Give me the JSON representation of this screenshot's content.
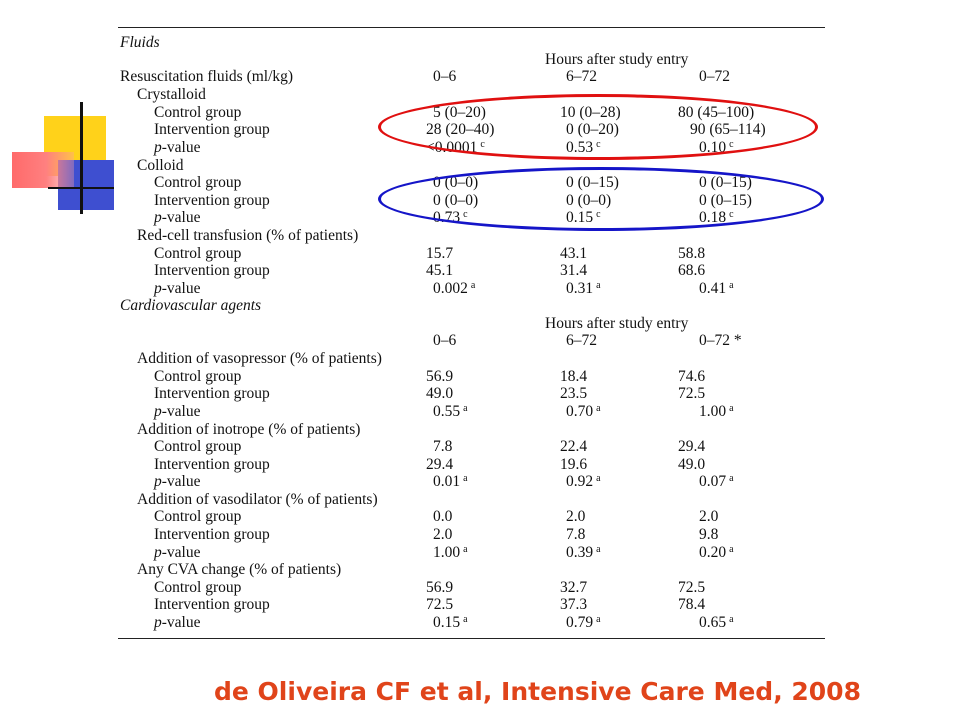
{
  "fluids_section": "Fluids",
  "cardio_section": "Cardiovascular agents",
  "fluids_header": {
    "title": "Hours after study entry",
    "col1": "0–6",
    "col2": "6–72",
    "col3": "0–72"
  },
  "cardio_header": {
    "title": "Hours after study entry",
    "col1": "0–6",
    "col2": "6–72",
    "col3": "0–72 *"
  },
  "rows": {
    "resus": {
      "label": "Resuscitation fluids (ml/kg)"
    },
    "crystalloid": {
      "label": "Crystalloid"
    },
    "cry_control": {
      "label": "Control group",
      "v1": "5 (0–20)",
      "v2": "10 (0–28)",
      "v3": "80 (45–100)"
    },
    "cry_interv": {
      "label": "Intervention group",
      "v1": "28 (20–40)",
      "v2": "0 (0–20)",
      "v3": "90 (65–114)"
    },
    "cry_p": {
      "label_italic": "p",
      "label": "-value",
      "v1": "<0.0001",
      "v1s": "c",
      "v2": "0.53",
      "v2s": "c",
      "v3": "0.10",
      "v3s": "c"
    },
    "colloid": {
      "label": "Colloid"
    },
    "col_control": {
      "label": "Control group",
      "v1": "0 (0–0)",
      "v2": "0 (0–15)",
      "v3": "0 (0–15)"
    },
    "col_interv": {
      "label": "Intervention group",
      "v1": "0 (0–0)",
      "v2": "0 (0–0)",
      "v3": "0 (0–15)"
    },
    "col_p": {
      "label_italic": "p",
      "label": "-value",
      "v1": "0.73",
      "v1s": "c",
      "v2": "0.15",
      "v2s": "c",
      "v3": "0.18",
      "v3s": "c"
    },
    "rbc": {
      "label": "Red-cell transfusion (% of patients)"
    },
    "rbc_control": {
      "label": "Control group",
      "v1": "15.7",
      "v2": "43.1",
      "v3": "58.8"
    },
    "rbc_interv": {
      "label": "Intervention group",
      "v1": "45.1",
      "v2": "31.4",
      "v3": "68.6"
    },
    "rbc_p": {
      "label_italic": "p",
      "label": "-value",
      "v1": "0.002",
      "v1s": "a",
      "v2": "0.31",
      "v2s": "a",
      "v3": "0.41",
      "v3s": "a"
    },
    "vasop": {
      "label": "Addition of vasopressor (% of patients)"
    },
    "vasop_control": {
      "label": "Control group",
      "v1": "56.9",
      "v2": "18.4",
      "v3": "74.6"
    },
    "vasop_interv": {
      "label": "Intervention group",
      "v1": "49.0",
      "v2": "23.5",
      "v3": "72.5"
    },
    "vasop_p": {
      "label_italic": "p",
      "label": "-value",
      "v1": "0.55",
      "v1s": "a",
      "v2": "0.70",
      "v2s": "a",
      "v3": "1.00",
      "v3s": "a"
    },
    "inot": {
      "label": "Addition of inotrope (% of patients)"
    },
    "inot_control": {
      "label": "Control group",
      "v1": "7.8",
      "v2": "22.4",
      "v3": "29.4"
    },
    "inot_interv": {
      "label": "Intervention group",
      "v1": "29.4",
      "v2": "19.6",
      "v3": "49.0"
    },
    "inot_p": {
      "label_italic": "p",
      "label": "-value",
      "v1": "0.01",
      "v1s": "a",
      "v2": "0.92",
      "v2s": "a",
      "v3": "0.07",
      "v3s": "a"
    },
    "vasod": {
      "label": "Addition of vasodilator (% of patients)"
    },
    "vasod_control": {
      "label": "Control group",
      "v1": "0.0",
      "v2": "2.0",
      "v3": "2.0"
    },
    "vasod_interv": {
      "label": "Intervention group",
      "v1": "2.0",
      "v2": "7.8",
      "v3": "9.8"
    },
    "vasod_p": {
      "label_italic": "p",
      "label": "-value",
      "v1": "1.00",
      "v1s": "a",
      "v2": "0.39",
      "v2s": "a",
      "v3": "0.20",
      "v3s": "a"
    },
    "cva": {
      "label": "Any CVA change (% of patients)"
    },
    "cva_control": {
      "label": "Control group",
      "v1": "56.9",
      "v2": "32.7",
      "v3": "72.5"
    },
    "cva_interv": {
      "label": "Intervention group",
      "v1": "72.5",
      "v2": "37.3",
      "v3": "78.4"
    },
    "cva_p": {
      "label_italic": "p",
      "label": "-value",
      "v1": "0.15",
      "v1s": "a",
      "v2": "0.79",
      "v2s": "a",
      "v3": "0.65",
      "v3s": "a"
    }
  },
  "highlight_colors": {
    "crystalloid_ellipse": "#e01010",
    "colloid_ellipse": "#1515c8",
    "citation": "#e0441a"
  },
  "citation": "de Oliveira CF et al, Intensive Care Med, 2008"
}
